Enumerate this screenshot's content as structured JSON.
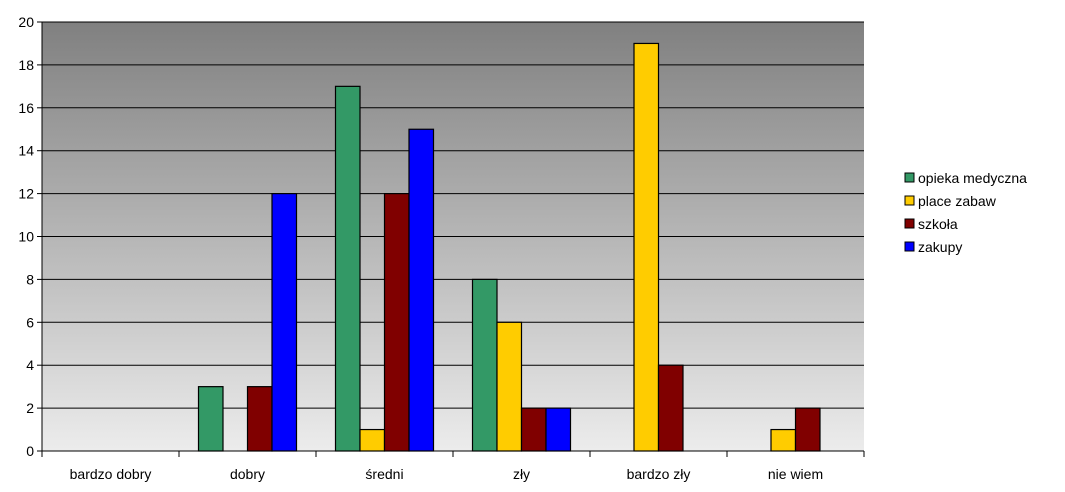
{
  "chart_data": {
    "type": "bar",
    "title": "",
    "xlabel": "",
    "ylabel": "",
    "categories": [
      "bardzo dobry",
      "dobry",
      "średni",
      "zły",
      "bardzo zły",
      "nie wiem"
    ],
    "ylim": [
      0,
      20
    ],
    "yticks": [
      "0",
      "2",
      "4",
      "6",
      "8",
      "10",
      "12",
      "14",
      "16",
      "18",
      "20"
    ],
    "ytick_values": [
      0,
      2,
      4,
      6,
      8,
      10,
      12,
      14,
      16,
      18,
      20
    ],
    "grid": true,
    "legend_position": "right",
    "background": "gradient-gray",
    "series": [
      {
        "name": "opieka medyczna",
        "color": "#339966",
        "values": [
          0,
          3,
          17,
          8,
          0,
          0
        ]
      },
      {
        "name": "place zabaw",
        "color": "#FFCC00",
        "values": [
          0,
          0,
          1,
          6,
          19,
          1
        ]
      },
      {
        "name": "szkoła",
        "color": "#800000",
        "values": [
          0,
          3,
          12,
          2,
          4,
          2
        ]
      },
      {
        "name": "zakupy",
        "color": "#0000FF",
        "values": [
          0,
          12,
          15,
          2,
          0,
          0
        ]
      }
    ]
  }
}
